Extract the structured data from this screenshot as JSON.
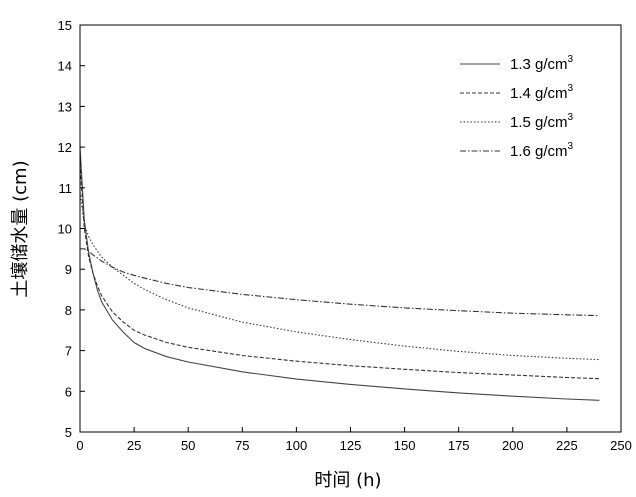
{
  "chart_data": {
    "type": "line",
    "title": "",
    "xlabel": "时间 (h)",
    "ylabel": "土壤储水量 (cm)",
    "xlim": [
      0,
      250
    ],
    "ylim": [
      5,
      15
    ],
    "xticks": [
      0,
      25,
      50,
      75,
      100,
      125,
      150,
      175,
      200,
      225,
      250
    ],
    "yticks": [
      5,
      6,
      7,
      8,
      9,
      10,
      11,
      12,
      13,
      14,
      15
    ],
    "grid": false,
    "legend_position": "top-right",
    "series": [
      {
        "name": "1.3 g/cm",
        "name_sup": "3",
        "style": "solid",
        "color": "#444444",
        "x": [
          0,
          2,
          4,
          6,
          8,
          10,
          15,
          20,
          25,
          30,
          40,
          50,
          75,
          100,
          125,
          150,
          175,
          200,
          225,
          240
        ],
        "y": [
          12.0,
          10.2,
          9.4,
          8.9,
          8.5,
          8.2,
          7.75,
          7.45,
          7.2,
          7.05,
          6.85,
          6.72,
          6.48,
          6.3,
          6.17,
          6.06,
          5.96,
          5.88,
          5.81,
          5.78
        ]
      },
      {
        "name": "1.4 g/cm",
        "name_sup": "3",
        "style": "dashed",
        "color": "#333333",
        "x": [
          0,
          2,
          4,
          6,
          8,
          10,
          15,
          20,
          25,
          30,
          40,
          50,
          75,
          100,
          125,
          150,
          175,
          200,
          225,
          240
        ],
        "y": [
          11.6,
          10.0,
          9.3,
          8.9,
          8.6,
          8.35,
          7.95,
          7.7,
          7.5,
          7.38,
          7.2,
          7.08,
          6.88,
          6.74,
          6.63,
          6.54,
          6.46,
          6.4,
          6.34,
          6.31
        ]
      },
      {
        "name": "1.5 g/cm",
        "name_sup": "3",
        "style": "dotted",
        "color": "#333333",
        "x": [
          0,
          2,
          4,
          6,
          8,
          10,
          15,
          20,
          25,
          30,
          40,
          50,
          75,
          100,
          125,
          150,
          175,
          200,
          225,
          240
        ],
        "y": [
          10.9,
          10.1,
          9.8,
          9.6,
          9.45,
          9.3,
          9.05,
          8.85,
          8.65,
          8.5,
          8.25,
          8.05,
          7.7,
          7.46,
          7.27,
          7.11,
          6.98,
          6.88,
          6.81,
          6.78
        ]
      },
      {
        "name": "1.6 g/cm",
        "name_sup": "3",
        "style": "dashdot",
        "color": "#333333",
        "x": [
          0,
          2,
          4,
          6,
          8,
          10,
          15,
          20,
          25,
          30,
          40,
          50,
          75,
          100,
          125,
          150,
          175,
          200,
          225,
          240
        ],
        "y": [
          9.5,
          9.5,
          9.45,
          9.35,
          9.28,
          9.2,
          9.05,
          8.93,
          8.85,
          8.78,
          8.65,
          8.55,
          8.38,
          8.25,
          8.14,
          8.05,
          7.98,
          7.92,
          7.88,
          7.86
        ]
      }
    ]
  }
}
